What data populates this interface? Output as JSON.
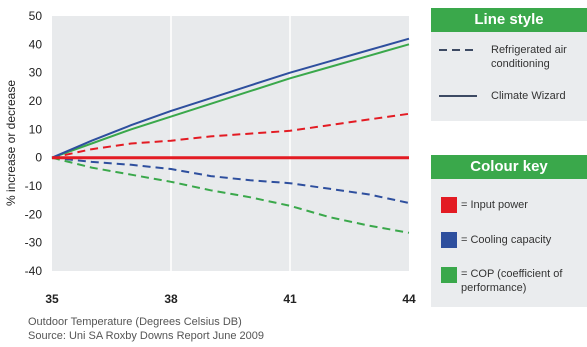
{
  "chart_data": {
    "type": "line",
    "x_ticks": [
      35,
      38,
      41,
      44
    ],
    "xlim": [
      35,
      44
    ],
    "ylim": [
      -40,
      50
    ],
    "y_ticks": [
      50,
      40,
      30,
      20,
      10,
      0,
      -10,
      -20,
      -30,
      -40
    ],
    "ylabel": "% increase or decrease",
    "xlabel": "Outdoor Temperature (Degrees Celsius DB)",
    "source": "Source: Uni SA Roxby Downs Report June 2009",
    "series": [
      {
        "key": "input-power-climate-wizard",
        "style": "solid",
        "color": "#e31b23",
        "x": [
          35,
          38,
          41,
          44
        ],
        "y": [
          0,
          0,
          0,
          0
        ]
      },
      {
        "key": "input-power-refrigerated",
        "style": "dashed",
        "color": "#e31b23",
        "x": [
          35,
          36,
          37,
          38,
          39,
          40,
          41,
          42,
          43,
          44
        ],
        "y": [
          0,
          3,
          5,
          6,
          7.5,
          8.5,
          9.5,
          11.5,
          13.5,
          15.5
        ]
      },
      {
        "key": "cooling-capacity-climate-wizard",
        "style": "solid",
        "color": "#2e4f9e",
        "x": [
          35,
          36,
          37,
          38,
          39,
          40,
          41,
          42,
          43,
          44
        ],
        "y": [
          0,
          6,
          11.5,
          16.5,
          21,
          25.5,
          30,
          34,
          38,
          42
        ]
      },
      {
        "key": "cooling-capacity-refrigerated",
        "style": "dashed",
        "color": "#2e4f9e",
        "x": [
          35,
          36,
          37,
          38,
          39,
          40,
          41,
          42,
          43,
          44
        ],
        "y": [
          0,
          -1.5,
          -2.5,
          -4,
          -6.5,
          -8,
          -9,
          -11,
          -13,
          -16
        ]
      },
      {
        "key": "cop-climate-wizard",
        "style": "solid",
        "color": "#3aa84b",
        "x": [
          35,
          36,
          37,
          38,
          39,
          40,
          41,
          42,
          43,
          44
        ],
        "y": [
          0,
          5,
          10,
          14.5,
          19,
          23.5,
          28,
          32,
          36,
          40
        ]
      },
      {
        "key": "cop-refrigerated",
        "style": "dashed",
        "color": "#3aa84b",
        "x": [
          35,
          36,
          37,
          38,
          39,
          40,
          41,
          42,
          43,
          44
        ],
        "y": [
          0,
          -3.5,
          -6,
          -8.5,
          -11.5,
          -14,
          -17,
          -21,
          -24,
          -26.5
        ]
      }
    ]
  },
  "legend": {
    "line_style": {
      "title": "Line style",
      "items": [
        {
          "label": "Refrigerated air conditioning",
          "style": "dashed"
        },
        {
          "label": "Climate Wizard",
          "style": "solid"
        }
      ]
    },
    "colour_key": {
      "title": "Colour key",
      "items": [
        {
          "label": "= Input power",
          "color": "#e31b23"
        },
        {
          "label": "= Cooling capacity",
          "color": "#2e4f9e"
        },
        {
          "label": "= COP (coefficient of performance)",
          "color": "#3aa84b"
        }
      ]
    }
  }
}
